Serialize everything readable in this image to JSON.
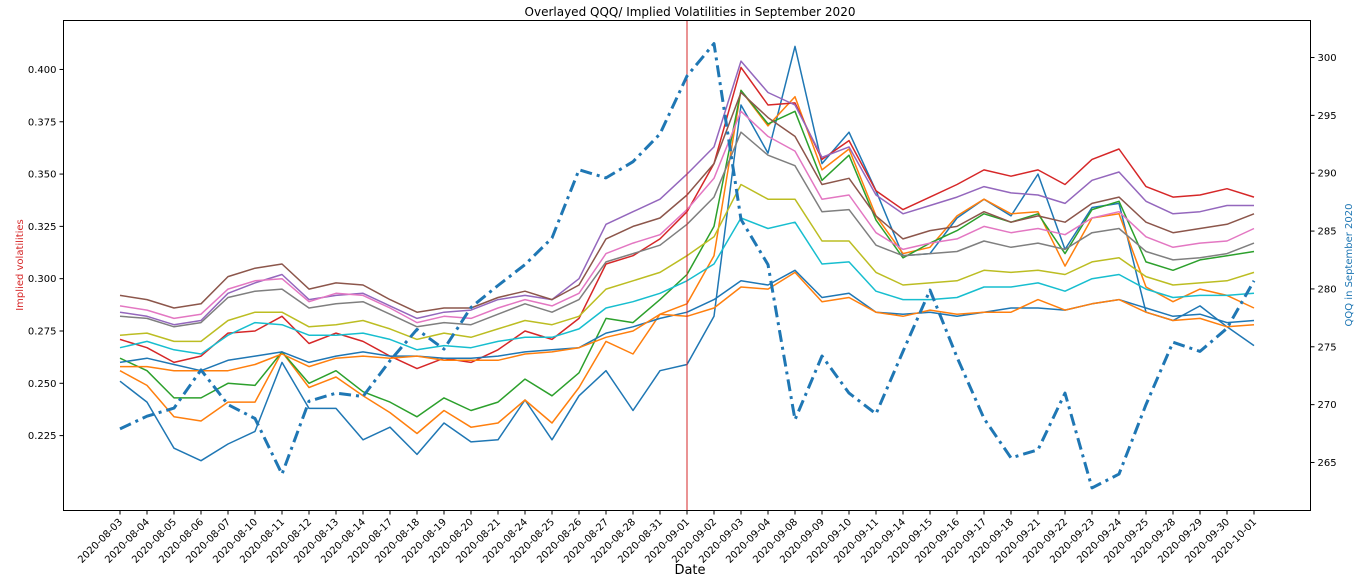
{
  "chart_data": {
    "type": "line",
    "title": "Overlayed QQQ/ Implied Volatilities in September 2020",
    "xlabel": "Date",
    "ylabel": "Implied volatilities",
    "ylabel_color": "#d62728",
    "y2label": "QQQ in September 2020",
    "y2label_color": "#1f77b4",
    "ylim": [
      0.1892,
      0.4234
    ],
    "y2lim": [
      260.85,
      303.2
    ],
    "yticks": [
      "0.225",
      "0.250",
      "0.275",
      "0.300",
      "0.325",
      "0.350",
      "0.375",
      "0.400"
    ],
    "y2ticks": [
      "265",
      "270",
      "275",
      "280",
      "285",
      "290",
      "295",
      "300"
    ],
    "grid": false,
    "legend": "none",
    "vline": {
      "x": "2020-09-01",
      "color": "#d62728"
    },
    "x": [
      "2020-08-03",
      "2020-08-04",
      "2020-08-05",
      "2020-08-06",
      "2020-08-07",
      "2020-08-10",
      "2020-08-11",
      "2020-08-12",
      "2020-08-13",
      "2020-08-14",
      "2020-08-17",
      "2020-08-18",
      "2020-08-19",
      "2020-08-20",
      "2020-08-21",
      "2020-08-24",
      "2020-08-25",
      "2020-08-26",
      "2020-08-27",
      "2020-08-28",
      "2020-08-31",
      "2020-09-01",
      "2020-09-02",
      "2020-09-03",
      "2020-09-04",
      "2020-09-08",
      "2020-09-09",
      "2020-09-10",
      "2020-09-11",
      "2020-09-14",
      "2020-09-15",
      "2020-09-16",
      "2020-09-17",
      "2020-09-18",
      "2020-09-21",
      "2020-09-22",
      "2020-09-23",
      "2020-09-24",
      "2020-09-25",
      "2020-09-28",
      "2020-09-29",
      "2020-09-30",
      "2020-10-01"
    ],
    "series": [
      {
        "color": "#1f77b4",
        "values": [
          0.251,
          0.241,
          0.219,
          0.213,
          0.221,
          0.227,
          0.26,
          0.238,
          0.238,
          0.223,
          0.229,
          0.216,
          0.231,
          0.222,
          0.223,
          0.242,
          0.223,
          0.244,
          0.256,
          0.237,
          0.256,
          0.259,
          0.282,
          0.383,
          0.36,
          0.411,
          0.355,
          0.37,
          0.342,
          0.311,
          0.312,
          0.329,
          0.338,
          0.33,
          0.35,
          0.314,
          0.334,
          0.336,
          0.284,
          0.28,
          0.287,
          0.277,
          0.268
        ]
      },
      {
        "color": "#ff7f0e",
        "values": [
          0.256,
          0.249,
          0.234,
          0.232,
          0.241,
          0.241,
          0.265,
          0.248,
          0.253,
          0.244,
          0.236,
          0.226,
          0.237,
          0.229,
          0.231,
          0.242,
          0.231,
          0.248,
          0.27,
          0.264,
          0.283,
          0.288,
          0.311,
          0.39,
          0.373,
          0.387,
          0.352,
          0.362,
          0.33,
          0.312,
          0.315,
          0.33,
          0.338,
          0.331,
          0.332,
          0.306,
          0.329,
          0.331,
          0.296,
          0.289,
          0.295,
          0.292,
          0.286
        ]
      },
      {
        "color": "#2ca02c",
        "values": [
          0.262,
          0.256,
          0.243,
          0.243,
          0.25,
          0.249,
          0.265,
          0.25,
          0.256,
          0.246,
          0.241,
          0.234,
          0.243,
          0.237,
          0.241,
          0.252,
          0.244,
          0.255,
          0.281,
          0.279,
          0.29,
          0.302,
          0.325,
          0.39,
          0.374,
          0.38,
          0.347,
          0.359,
          0.328,
          0.31,
          0.317,
          0.323,
          0.331,
          0.327,
          0.331,
          0.312,
          0.333,
          0.337,
          0.308,
          0.304,
          0.309,
          0.311,
          0.313
        ]
      },
      {
        "color": "#d62728",
        "values": [
          0.271,
          0.267,
          0.26,
          0.263,
          0.274,
          0.275,
          0.282,
          0.269,
          0.274,
          0.27,
          0.263,
          0.257,
          0.262,
          0.26,
          0.266,
          0.275,
          0.271,
          0.281,
          0.307,
          0.311,
          0.319,
          0.332,
          0.355,
          0.401,
          0.383,
          0.384,
          0.357,
          0.366,
          0.342,
          0.333,
          0.339,
          0.345,
          0.352,
          0.349,
          0.352,
          0.345,
          0.357,
          0.362,
          0.344,
          0.339,
          0.34,
          0.343,
          0.339
        ]
      },
      {
        "color": "#9467bd",
        "values": [
          0.284,
          0.282,
          0.278,
          0.28,
          0.293,
          0.298,
          0.302,
          0.29,
          0.292,
          0.293,
          0.287,
          0.281,
          0.284,
          0.285,
          0.29,
          0.292,
          0.29,
          0.3,
          0.326,
          0.332,
          0.338,
          0.35,
          0.363,
          0.404,
          0.389,
          0.383,
          0.358,
          0.363,
          0.34,
          0.331,
          0.335,
          0.339,
          0.344,
          0.341,
          0.34,
          0.336,
          0.347,
          0.351,
          0.337,
          0.331,
          0.332,
          0.335,
          0.335
        ]
      },
      {
        "color": "#8c564b",
        "values": [
          0.292,
          0.29,
          0.286,
          0.288,
          0.301,
          0.305,
          0.307,
          0.295,
          0.298,
          0.297,
          0.29,
          0.284,
          0.286,
          0.286,
          0.291,
          0.294,
          0.29,
          0.297,
          0.319,
          0.325,
          0.329,
          0.34,
          0.355,
          0.389,
          0.377,
          0.368,
          0.345,
          0.348,
          0.33,
          0.319,
          0.323,
          0.325,
          0.332,
          0.327,
          0.33,
          0.327,
          0.336,
          0.339,
          0.327,
          0.322,
          0.324,
          0.326,
          0.331
        ]
      },
      {
        "color": "#e377c2",
        "values": [
          0.287,
          0.285,
          0.281,
          0.283,
          0.295,
          0.299,
          0.3,
          0.289,
          0.293,
          0.292,
          0.286,
          0.279,
          0.282,
          0.281,
          0.286,
          0.29,
          0.287,
          0.293,
          0.312,
          0.317,
          0.321,
          0.333,
          0.348,
          0.38,
          0.368,
          0.361,
          0.338,
          0.34,
          0.322,
          0.314,
          0.317,
          0.319,
          0.325,
          0.322,
          0.324,
          0.321,
          0.329,
          0.332,
          0.32,
          0.315,
          0.317,
          0.318,
          0.324
        ]
      },
      {
        "color": "#7f7f7f",
        "values": [
          0.282,
          0.281,
          0.277,
          0.279,
          0.291,
          0.294,
          0.295,
          0.286,
          0.288,
          0.289,
          0.283,
          0.277,
          0.279,
          0.278,
          0.283,
          0.288,
          0.284,
          0.29,
          0.308,
          0.312,
          0.316,
          0.326,
          0.339,
          0.37,
          0.359,
          0.354,
          0.332,
          0.333,
          0.316,
          0.311,
          0.312,
          0.313,
          0.318,
          0.315,
          0.317,
          0.314,
          0.322,
          0.324,
          0.313,
          0.309,
          0.31,
          0.312,
          0.317
        ]
      },
      {
        "color": "#bcbd22",
        "values": [
          0.273,
          0.274,
          0.27,
          0.27,
          0.28,
          0.284,
          0.284,
          0.277,
          0.278,
          0.28,
          0.276,
          0.271,
          0.274,
          0.272,
          0.276,
          0.28,
          0.278,
          0.282,
          0.295,
          0.299,
          0.303,
          0.311,
          0.32,
          0.345,
          0.338,
          0.338,
          0.318,
          0.318,
          0.303,
          0.297,
          0.298,
          0.299,
          0.304,
          0.303,
          0.304,
          0.302,
          0.308,
          0.31,
          0.301,
          0.297,
          0.298,
          0.299,
          0.303
        ]
      },
      {
        "color": "#17becf",
        "values": [
          0.267,
          0.27,
          0.266,
          0.264,
          0.273,
          0.279,
          0.278,
          0.273,
          0.273,
          0.274,
          0.271,
          0.266,
          0.268,
          0.267,
          0.27,
          0.272,
          0.272,
          0.276,
          0.286,
          0.289,
          0.293,
          0.299,
          0.307,
          0.329,
          0.324,
          0.327,
          0.307,
          0.308,
          0.294,
          0.29,
          0.29,
          0.291,
          0.296,
          0.296,
          0.298,
          0.294,
          0.3,
          0.302,
          0.295,
          0.291,
          0.292,
          0.292,
          0.293
        ]
      },
      {
        "color": "#1f77b4",
        "values": [
          0.26,
          0.262,
          0.259,
          0.256,
          0.261,
          0.263,
          0.265,
          0.26,
          0.263,
          0.265,
          0.263,
          0.263,
          0.262,
          0.262,
          0.263,
          0.265,
          0.266,
          0.267,
          0.274,
          0.277,
          0.281,
          0.284,
          0.29,
          0.299,
          0.297,
          0.304,
          0.291,
          0.293,
          0.284,
          0.283,
          0.284,
          0.282,
          0.284,
          0.286,
          0.286,
          0.285,
          0.288,
          0.29,
          0.286,
          0.282,
          0.283,
          0.279,
          0.28
        ]
      },
      {
        "color": "#ff7f0e",
        "values": [
          0.258,
          0.258,
          0.256,
          0.256,
          0.256,
          0.259,
          0.264,
          0.258,
          0.262,
          0.263,
          0.262,
          0.263,
          0.261,
          0.261,
          0.261,
          0.264,
          0.265,
          0.267,
          0.272,
          0.275,
          0.283,
          0.282,
          0.286,
          0.296,
          0.295,
          0.303,
          0.289,
          0.291,
          0.284,
          0.282,
          0.285,
          0.283,
          0.284,
          0.284,
          0.29,
          0.285,
          0.288,
          0.29,
          0.284,
          0.28,
          0.281,
          0.277,
          0.278
        ]
      }
    ],
    "secondary_series": {
      "color": "#1f77b4",
      "style": "dash-dot",
      "axis": "right",
      "values": [
        267.9,
        269.0,
        269.7,
        273.0,
        270.0,
        268.8,
        264.0,
        270.3,
        271.0,
        270.7,
        273.8,
        276.5,
        274.8,
        278.4,
        280.3,
        282.1,
        284.4,
        290.3,
        289.6,
        291.0,
        293.4,
        298.4,
        301.2,
        286.0,
        282.1,
        268.7,
        274.2,
        271.0,
        269.2,
        274.6,
        279.9,
        274.1,
        268.8,
        265.4,
        266.1,
        271.0,
        262.8,
        264.0,
        270.0,
        275.4,
        274.6,
        276.6,
        280.7
      ]
    }
  }
}
